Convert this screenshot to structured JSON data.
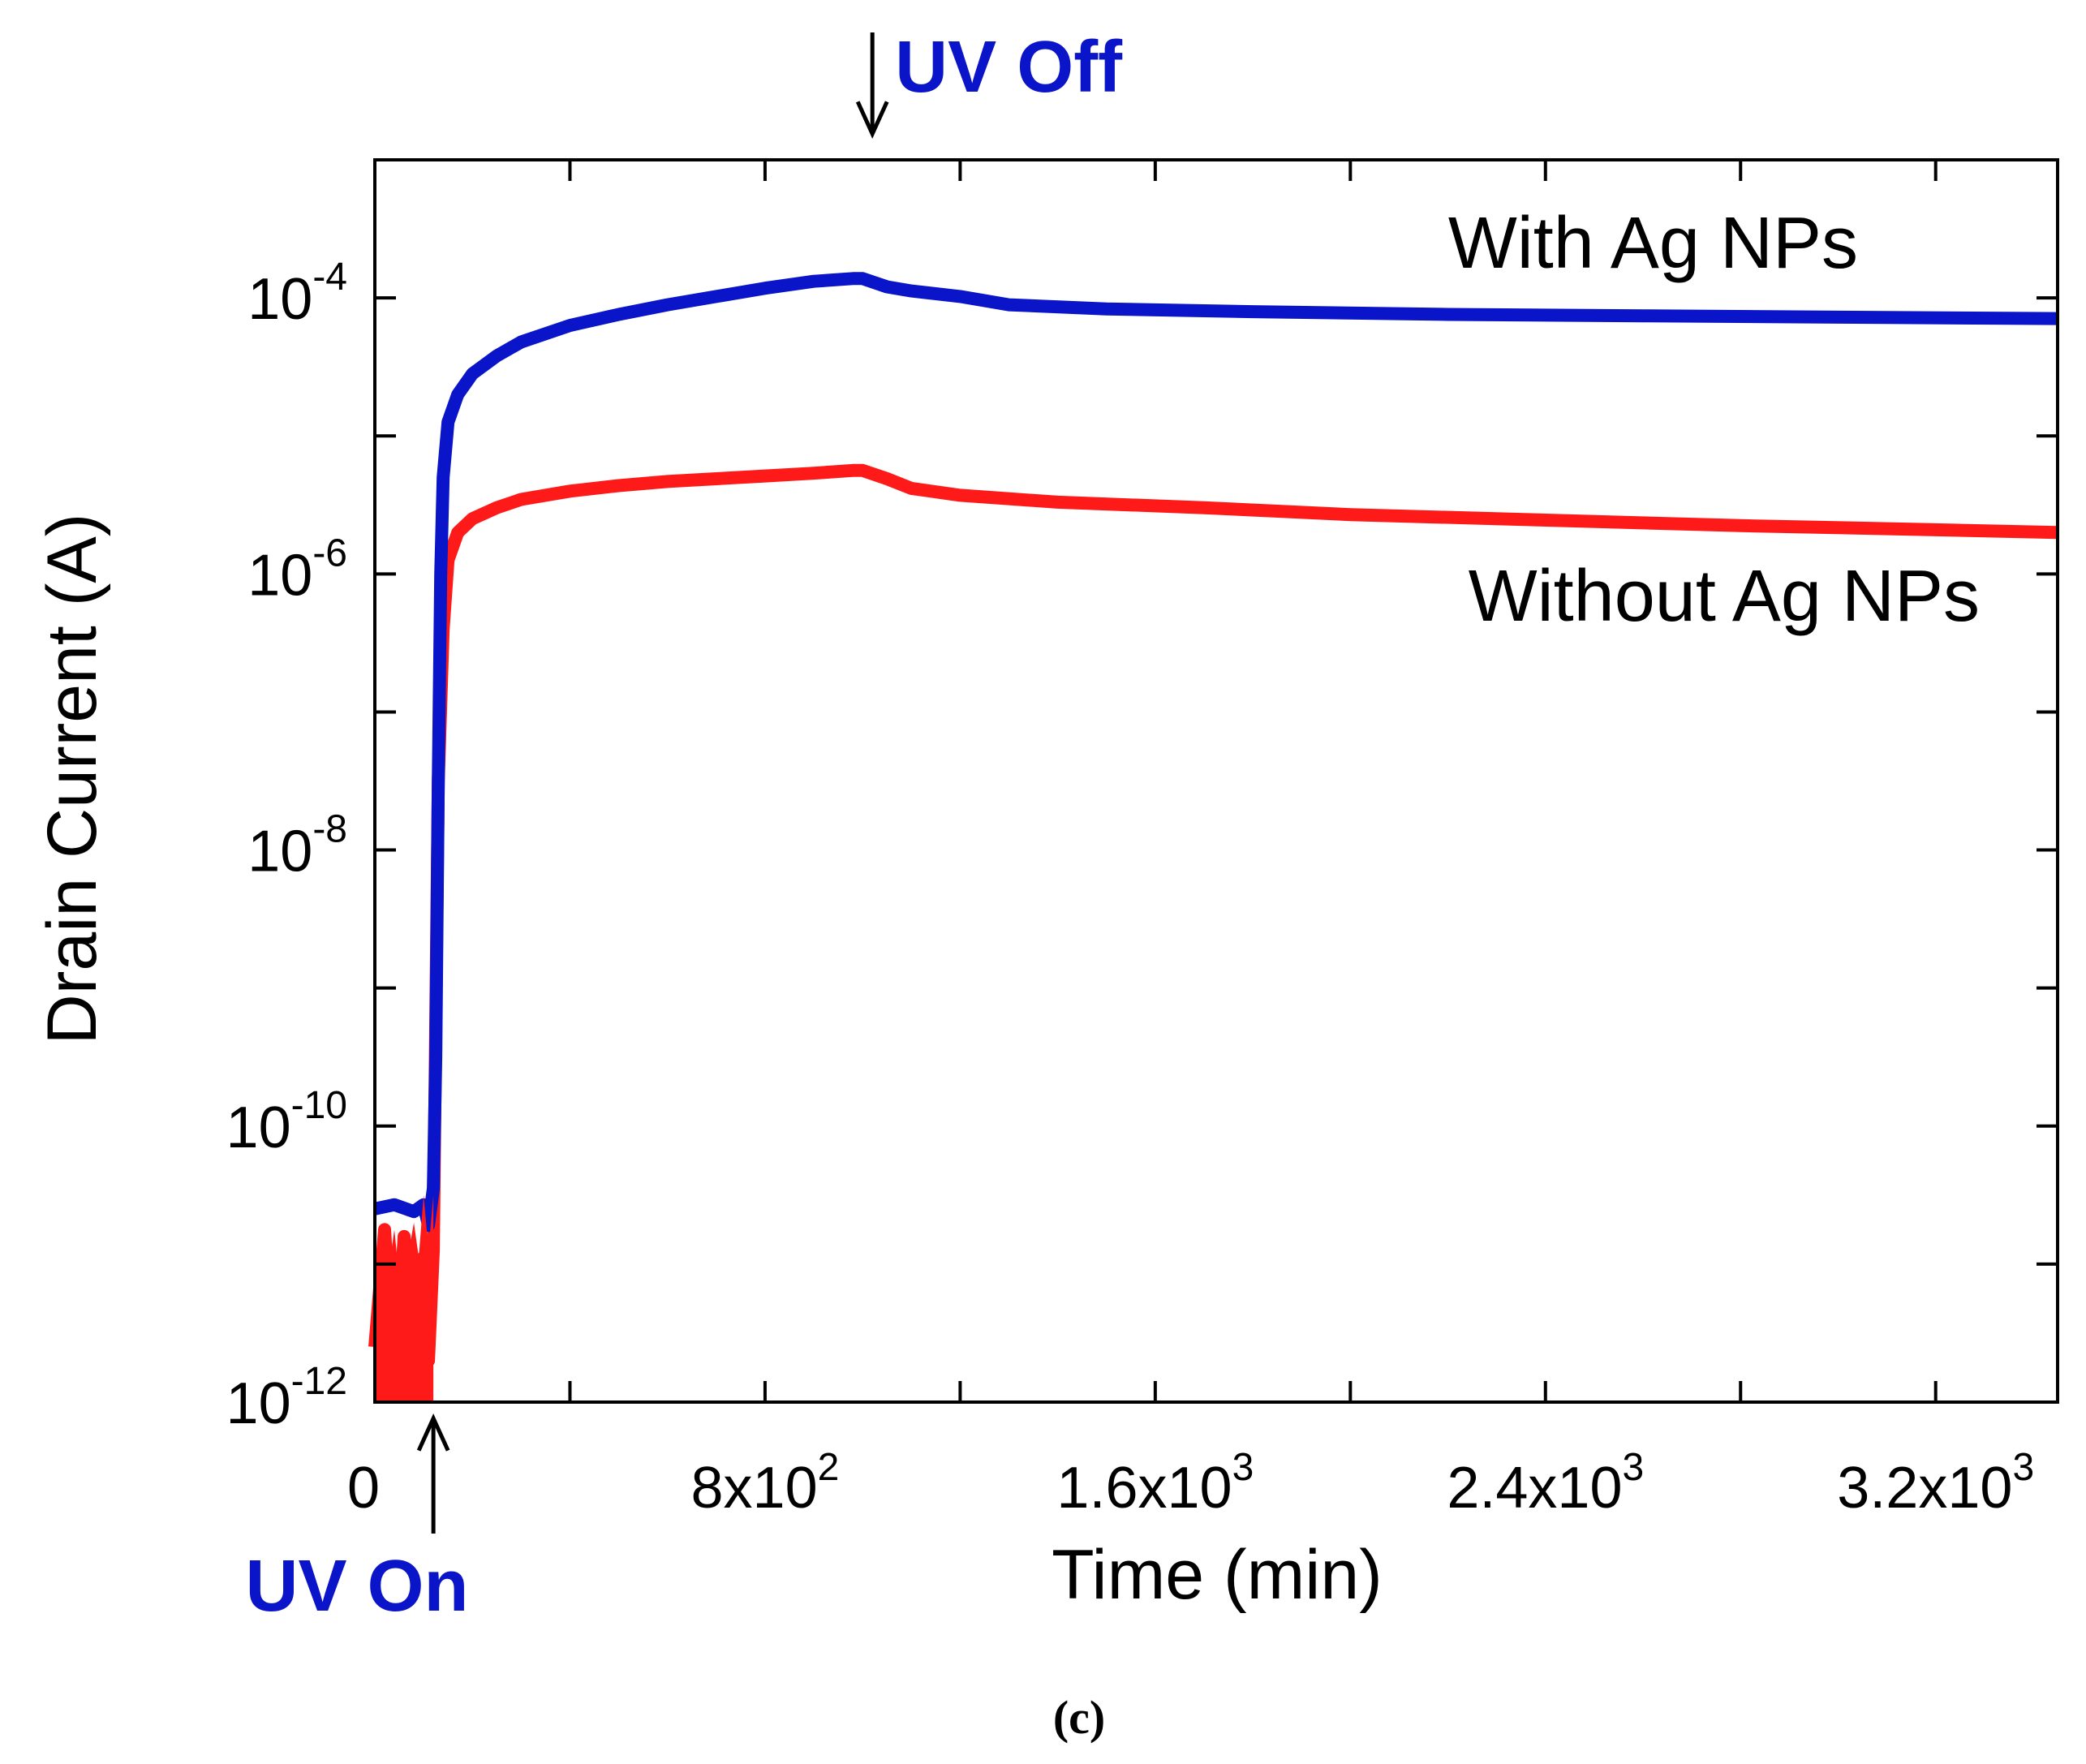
{
  "chart_data": {
    "type": "line",
    "caption": "(c)",
    "xlabel": "Time (min)",
    "ylabel": "Drain Current (A)",
    "xlim": [
      0,
      3450
    ],
    "ylim_log10": [
      -12,
      -3
    ],
    "y_scale": "log",
    "x_ticks": [
      {
        "value": 0,
        "label": "0"
      },
      {
        "value": 800,
        "mantissa": "8x10",
        "exp": "2"
      },
      {
        "value": 1600,
        "mantissa": "1.6x10",
        "exp": "3"
      },
      {
        "value": 2400,
        "mantissa": "2.4x10",
        "exp": "3"
      },
      {
        "value": 3200,
        "mantissa": "3.2x10",
        "exp": "3"
      }
    ],
    "x_minor_ticks": [
      400,
      1200,
      2000,
      2800
    ],
    "y_ticks": [
      {
        "log": -4,
        "base": "10",
        "exp": "-4"
      },
      {
        "log": -6,
        "base": "10",
        "exp": "-6"
      },
      {
        "log": -8,
        "base": "10",
        "exp": "-8"
      },
      {
        "log": -10,
        "base": "10",
        "exp": "-10"
      },
      {
        "log": -12,
        "base": "10",
        "exp": "-12"
      }
    ],
    "y_minor_ticks": [
      -3,
      -5,
      -7,
      -9,
      -11
    ],
    "series": [
      {
        "name": "With Ag NPs",
        "color": "#0a14c8",
        "points": [
          [
            0,
            -10.6
          ],
          [
            40,
            -10.57
          ],
          [
            80,
            -10.62
          ],
          [
            100,
            -10.57
          ],
          [
            110,
            -10.72
          ],
          [
            120,
            -10.45
          ],
          [
            125,
            -9.5
          ],
          [
            130,
            -7.5
          ],
          [
            135,
            -6
          ],
          [
            140,
            -5.3
          ],
          [
            150,
            -4.9
          ],
          [
            170,
            -4.7
          ],
          [
            200,
            -4.55
          ],
          [
            250,
            -4.42
          ],
          [
            300,
            -4.32
          ],
          [
            400,
            -4.2
          ],
          [
            500,
            -4.12
          ],
          [
            600,
            -4.05
          ],
          [
            700,
            -3.99
          ],
          [
            800,
            -3.93
          ],
          [
            900,
            -3.88
          ],
          [
            980,
            -3.86
          ],
          [
            1000,
            -3.86
          ],
          [
            1050,
            -3.92
          ],
          [
            1100,
            -3.95
          ],
          [
            1200,
            -3.99
          ],
          [
            1300,
            -4.05
          ],
          [
            1500,
            -4.08
          ],
          [
            1800,
            -4.1
          ],
          [
            2200,
            -4.12
          ],
          [
            2600,
            -4.13
          ],
          [
            3000,
            -4.14
          ],
          [
            3450,
            -4.15
          ]
        ]
      },
      {
        "name": "Without Ag NPs",
        "color": "#ff1a1a",
        "points": [
          [
            0,
            -11.6
          ],
          [
            20,
            -10.75
          ],
          [
            40,
            -11.9
          ],
          [
            60,
            -10.8
          ],
          [
            80,
            -11.8
          ],
          [
            100,
            -10.95
          ],
          [
            110,
            -11.7
          ],
          [
            120,
            -10.9
          ],
          [
            130,
            -7.5
          ],
          [
            140,
            -6.4
          ],
          [
            150,
            -5.9
          ],
          [
            170,
            -5.7
          ],
          [
            200,
            -5.6
          ],
          [
            250,
            -5.52
          ],
          [
            300,
            -5.46
          ],
          [
            400,
            -5.4
          ],
          [
            500,
            -5.36
          ],
          [
            600,
            -5.33
          ],
          [
            700,
            -5.31
          ],
          [
            800,
            -5.29
          ],
          [
            900,
            -5.27
          ],
          [
            980,
            -5.25
          ],
          [
            1000,
            -5.25
          ],
          [
            1050,
            -5.31
          ],
          [
            1100,
            -5.38
          ],
          [
            1200,
            -5.43
          ],
          [
            1400,
            -5.48
          ],
          [
            1700,
            -5.52
          ],
          [
            2000,
            -5.57
          ],
          [
            2400,
            -5.61
          ],
          [
            2800,
            -5.65
          ],
          [
            3200,
            -5.68
          ],
          [
            3450,
            -5.7
          ]
        ]
      }
    ],
    "series_labels": [
      {
        "text": "With Ag NPs",
        "anchor": {
          "x": 3450,
          "log": -3.6
        }
      },
      {
        "text": "Without Ag NPs",
        "anchor": {
          "x": 3450,
          "log": -6.2
        }
      }
    ],
    "annotations": [
      {
        "text": "UV On",
        "color": "#0a14c8",
        "x": 120,
        "direction": "up"
      },
      {
        "text": "UV Off",
        "color": "#0a14c8",
        "x": 1020,
        "direction": "down"
      }
    ]
  }
}
